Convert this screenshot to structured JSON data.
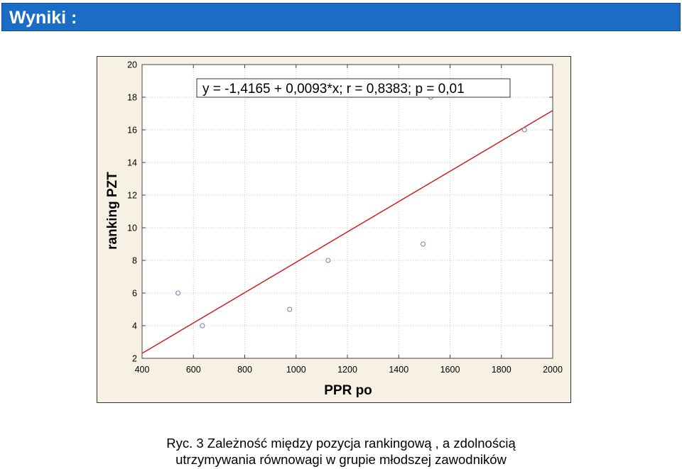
{
  "header": {
    "title": "Wyniki :"
  },
  "chart_data": {
    "type": "scatter",
    "title": "",
    "equation": "y = -1,4165 + 0,0093*x; r = 0,8383; p = 0,01",
    "xlabel": "PPR po",
    "ylabel": "ranking PZT",
    "xlim": [
      400,
      2000
    ],
    "ylim": [
      2,
      20
    ],
    "xticks": [
      "400",
      "600",
      "800",
      "1000",
      "1200",
      "1400",
      "1600",
      "1800",
      "2000"
    ],
    "yticks": [
      "20",
      "18",
      "16",
      "14",
      "12",
      "10",
      "8",
      "6",
      "4",
      "2"
    ],
    "grid": true,
    "points": [
      {
        "x": 540,
        "y": 6
      },
      {
        "x": 635,
        "y": 4
      },
      {
        "x": 975,
        "y": 5
      },
      {
        "x": 1125,
        "y": 8
      },
      {
        "x": 1495,
        "y": 9
      },
      {
        "x": 1525,
        "y": 18
      },
      {
        "x": 1890,
        "y": 16
      }
    ],
    "regression": {
      "intercept": -1.4165,
      "slope": 0.0093
    },
    "colors": {
      "line": "#cc2222",
      "marker": "#7a7ab8",
      "grid": "#c9c9c9",
      "background": "#ffffff",
      "panel": "#f7f1e4"
    }
  },
  "caption": {
    "line1": "Ryc.  3 Zależność  między pozycja rankingową , a zdolnością",
    "line2": "utrzymywania równowagi w grupie  młodszej zawodników"
  }
}
